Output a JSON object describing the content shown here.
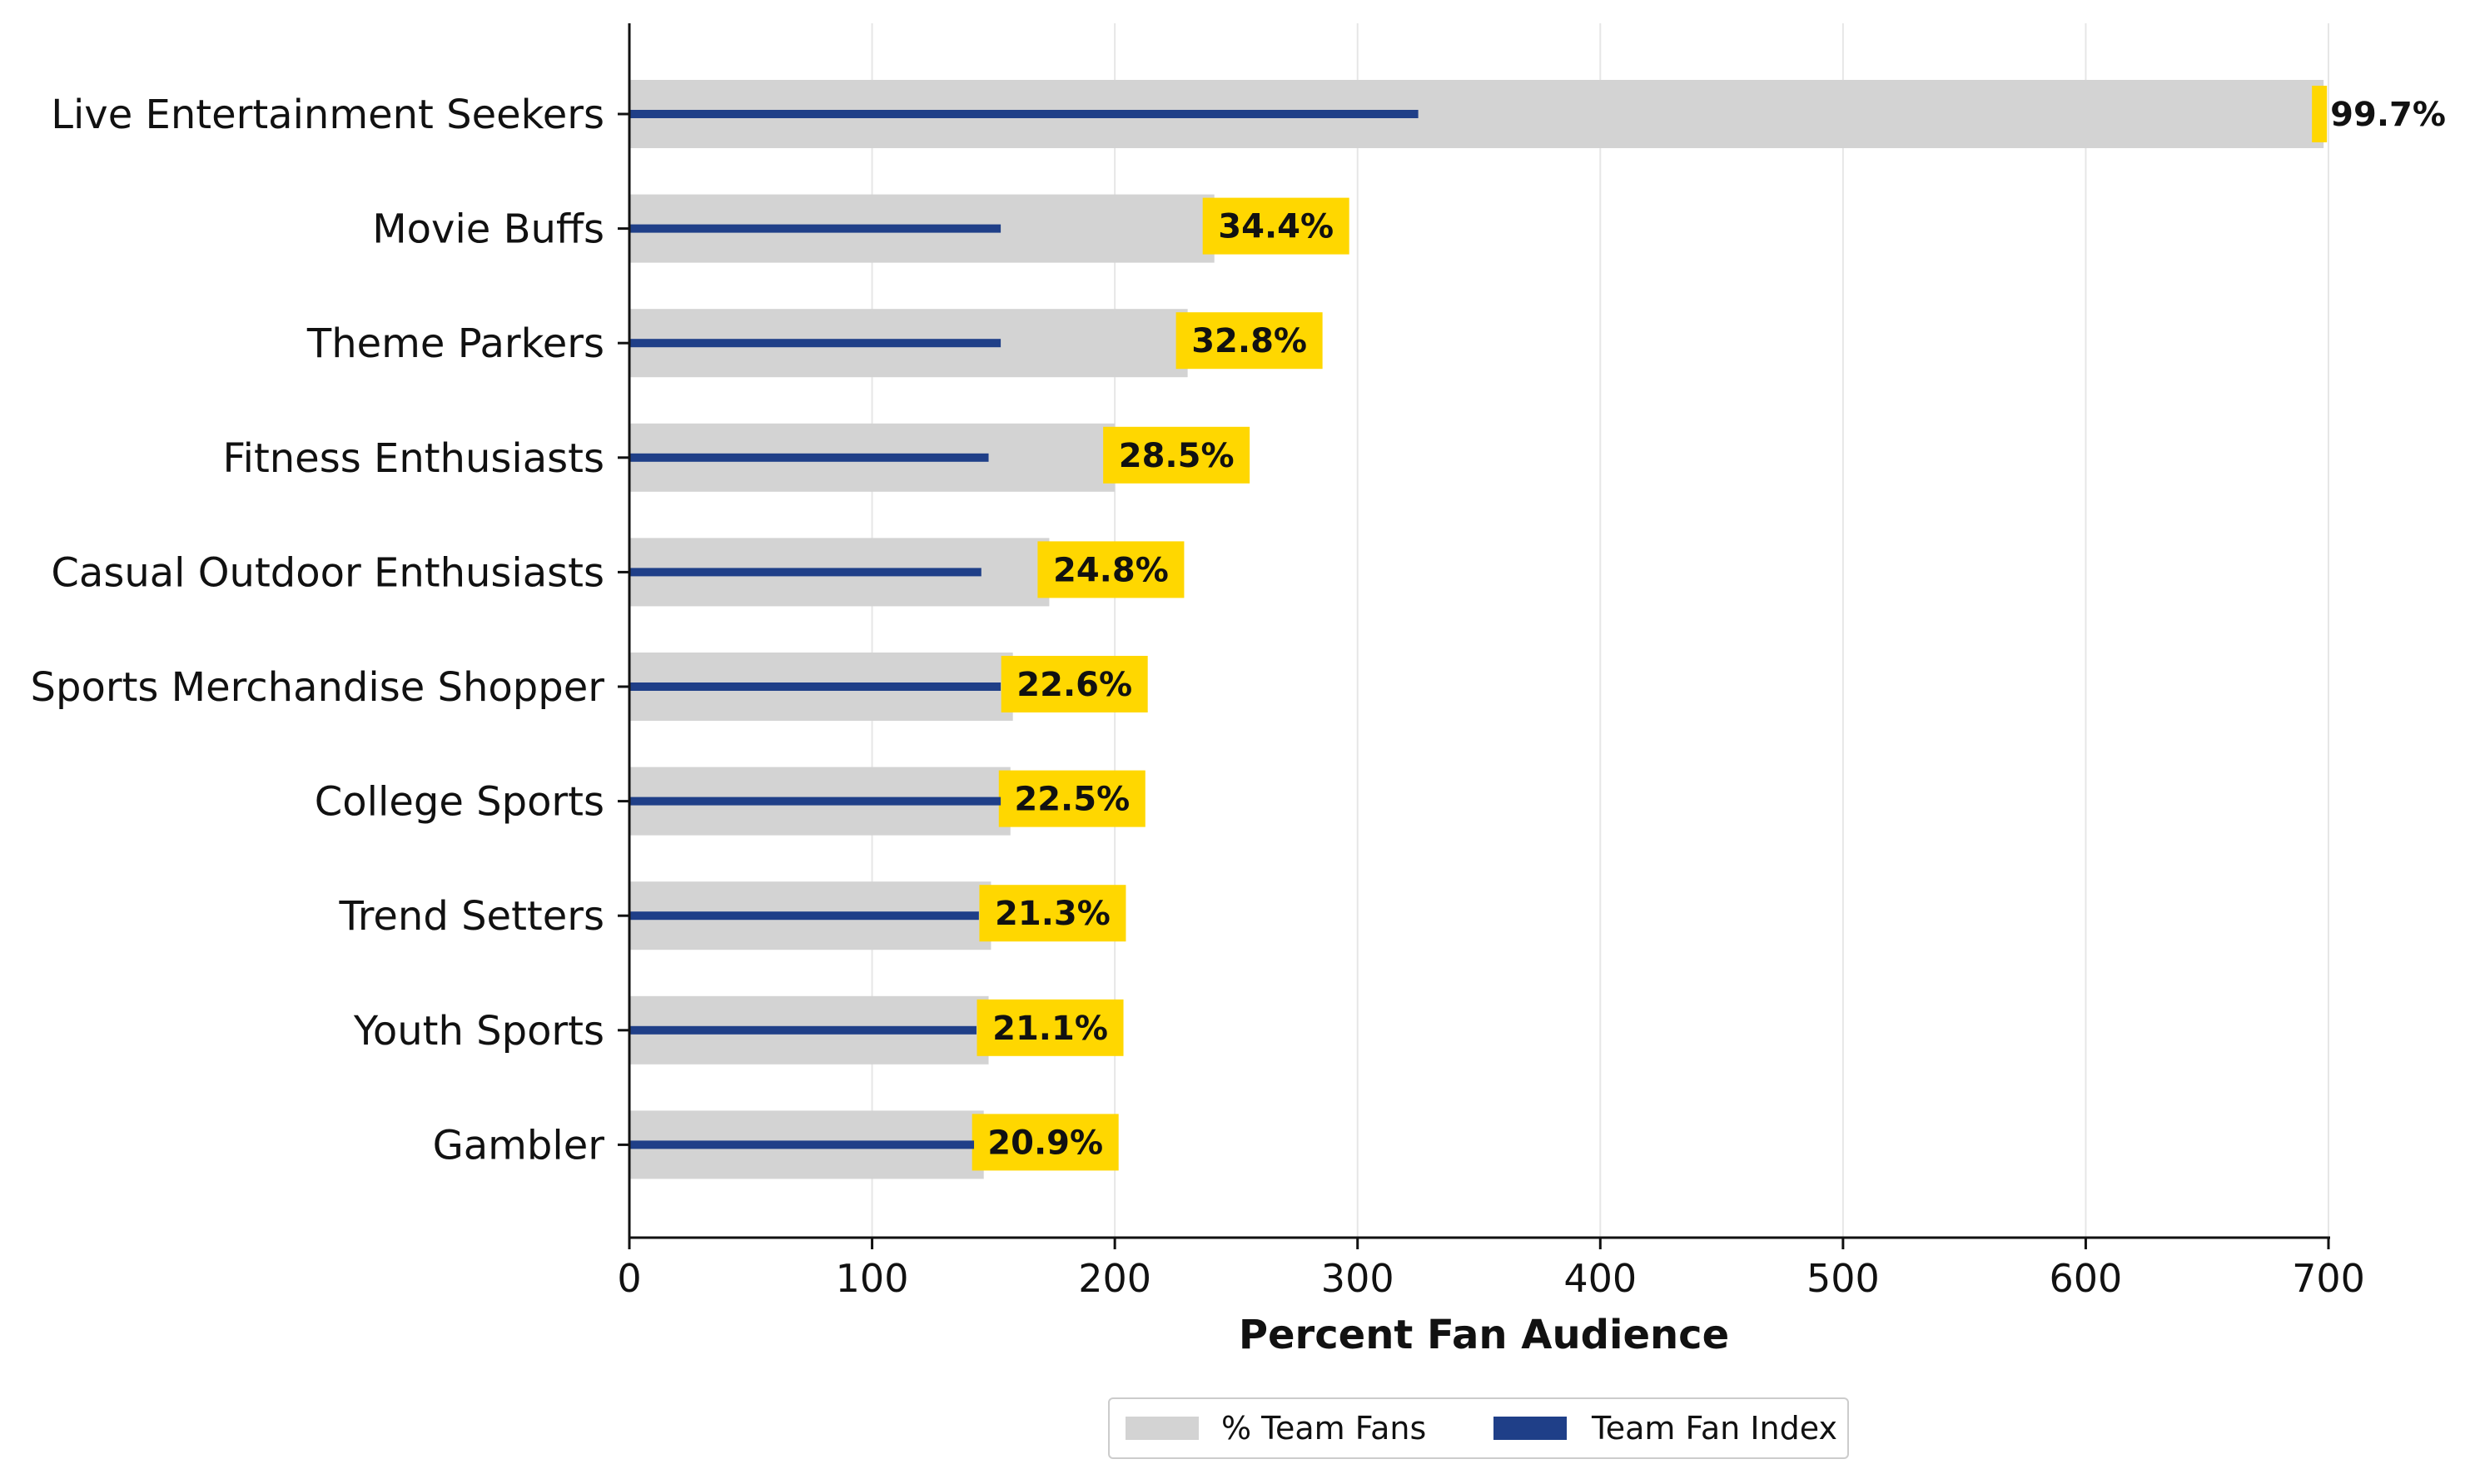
{
  "chart_data": {
    "type": "bar",
    "orientation": "horizontal",
    "categories": [
      "Live Entertainment Seekers",
      "Movie Buffs",
      "Theme Parkers",
      "Fitness Enthusiasts",
      "Casual Outdoor Enthusiasts",
      "Sports Merchandise Shopper",
      "College Sports",
      "Trend Setters",
      "Youth Sports",
      "Gambler"
    ],
    "series": [
      {
        "name": "% Team Fans",
        "values": [
          698,
          241,
          230,
          200,
          173,
          158,
          157,
          149,
          148,
          146
        ],
        "color": "#d3d3d3"
      },
      {
        "name": "Team Fan Index",
        "values": [
          325,
          153,
          153,
          148,
          145,
          153,
          153,
          144,
          143,
          142
        ],
        "color": "#1f3f88"
      }
    ],
    "data_labels": [
      "99.7%",
      "34.4%",
      "32.8%",
      "28.5%",
      "24.8%",
      "22.6%",
      "22.5%",
      "21.3%",
      "21.1%",
      "20.9%"
    ],
    "label_color": "#ffd700",
    "xlabel": "Percent Fan Audience",
    "xlim": [
      0,
      700
    ],
    "xticks": [
      0,
      100,
      200,
      300,
      400,
      500,
      600,
      700
    ],
    "grid": "vertical",
    "legend": "bottom-center"
  }
}
